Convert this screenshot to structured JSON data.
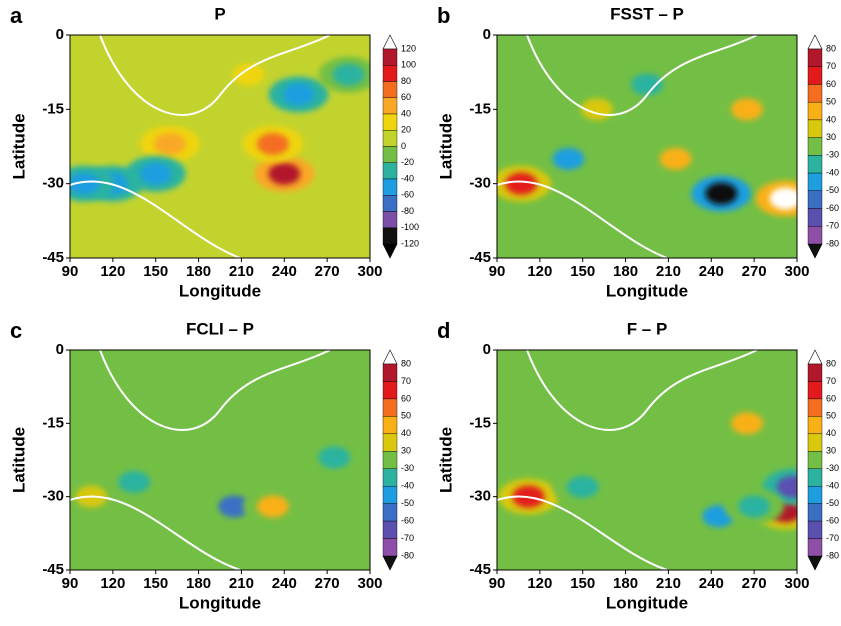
{
  "chart_data": [
    {
      "type": "contour",
      "panel_label": "a",
      "title": "P",
      "x_label": "Longitude",
      "y_label": "Latitude",
      "xlim": [
        90,
        300
      ],
      "ylim": [
        -45,
        0
      ],
      "xticks": [
        90,
        120,
        150,
        180,
        210,
        240,
        270,
        300
      ],
      "yticks": [
        0,
        -15,
        -30,
        -45
      ],
      "levels": [
        120,
        100,
        80,
        60,
        40,
        20,
        0,
        -20,
        -40,
        -60,
        -80,
        -100,
        -120
      ],
      "colors": [
        "#ffffff",
        "#b2182b",
        "#e31a1c",
        "#f46d20",
        "#f9a825",
        "#f0d40c",
        "#c3d32e",
        "#73bf45",
        "#2bb3a0",
        "#1e9ee0",
        "#3a6fc4",
        "#7b4fa8",
        "#111111"
      ],
      "x": [
        240,
        232,
        160,
        215,
        120,
        100,
        150,
        250,
        285
      ],
      "y": [
        -28,
        -22,
        -22,
        -8,
        -30,
        -30,
        -28,
        -12,
        -8
      ],
      "values": [
        110,
        60,
        40,
        35,
        -60,
        -50,
        -50,
        -50,
        -30
      ]
    },
    {
      "type": "contour",
      "panel_label": "b",
      "title": "FSST – P",
      "x_label": "Longitude",
      "y_label": "Latitude",
      "xlim": [
        90,
        300
      ],
      "ylim": [
        -45,
        0
      ],
      "xticks": [
        90,
        120,
        150,
        180,
        210,
        240,
        270,
        300
      ],
      "yticks": [
        0,
        -15,
        -30,
        -45
      ],
      "levels": [
        80,
        70,
        60,
        50,
        40,
        30,
        -30,
        -40,
        -50,
        -60,
        -70,
        -80
      ],
      "colors": [
        "#ffffff",
        "#b2182b",
        "#e31a1c",
        "#f46d20",
        "#f9b016",
        "#d9c80e",
        "#73bf45",
        "#2bb3a0",
        "#1e9ee0",
        "#3a6fc4",
        "#5b4fb0",
        "#8e4fa8",
        "#111111"
      ],
      "x": [
        107,
        140,
        195,
        247,
        265,
        215,
        160,
        292
      ],
      "y": [
        -30,
        -25,
        -10,
        -32,
        -15,
        -25,
        -15,
        -33
      ],
      "values": [
        60,
        -45,
        -40,
        -85,
        45,
        40,
        35,
        85
      ]
    },
    {
      "type": "contour",
      "panel_label": "c",
      "title": "FCLI – P",
      "x_label": "Longitude",
      "y_label": "Latitude",
      "xlim": [
        90,
        300
      ],
      "ylim": [
        -45,
        0
      ],
      "xticks": [
        90,
        120,
        150,
        180,
        210,
        240,
        270,
        300
      ],
      "yticks": [
        0,
        -15,
        -30,
        -45
      ],
      "levels": [
        80,
        70,
        60,
        50,
        40,
        30,
        -30,
        -40,
        -50,
        -60,
        -70,
        -80
      ],
      "colors": [
        "#ffffff",
        "#b2182b",
        "#e31a1c",
        "#f46d20",
        "#f9b016",
        "#d9c80e",
        "#73bf45",
        "#2bb3a0",
        "#1e9ee0",
        "#3a6fc4",
        "#5b4fb0",
        "#8e4fa8",
        "#111111"
      ],
      "x": [
        105,
        135,
        205,
        232,
        275
      ],
      "y": [
        -30,
        -27,
        -32,
        -32,
        -22
      ],
      "values": [
        35,
        -40,
        -55,
        40,
        -40
      ]
    },
    {
      "type": "contour",
      "panel_label": "d",
      "title": "F – P",
      "x_label": "Longitude",
      "y_label": "Latitude",
      "xlim": [
        90,
        300
      ],
      "ylim": [
        -45,
        0
      ],
      "xticks": [
        90,
        120,
        150,
        180,
        210,
        240,
        270,
        300
      ],
      "yticks": [
        0,
        -15,
        -30,
        -45
      ],
      "levels": [
        80,
        70,
        60,
        50,
        40,
        30,
        -30,
        -40,
        -50,
        -60,
        -70,
        -80
      ],
      "colors": [
        "#ffffff",
        "#b2182b",
        "#e31a1c",
        "#f46d20",
        "#f9b016",
        "#d9c80e",
        "#73bf45",
        "#2bb3a0",
        "#1e9ee0",
        "#3a6fc4",
        "#5b4fb0",
        "#8e4fa8",
        "#111111"
      ],
      "x": [
        112,
        150,
        245,
        265,
        292,
        297,
        270
      ],
      "y": [
        -30,
        -28,
        -34,
        -15,
        -33,
        -28,
        -32
      ],
      "values": [
        65,
        -40,
        -50,
        40,
        70,
        -65,
        -35
      ]
    }
  ]
}
